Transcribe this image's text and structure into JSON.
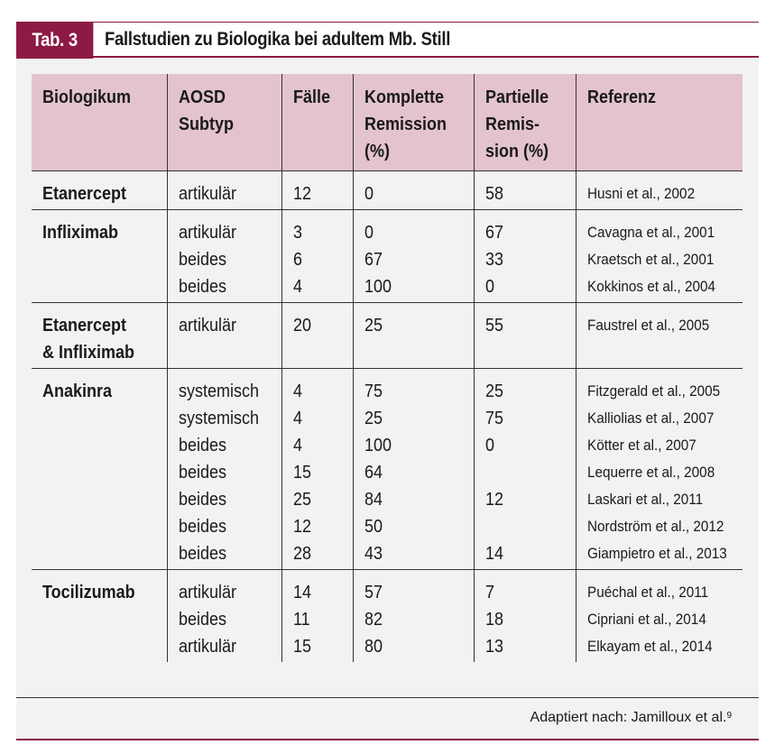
{
  "tag": "Tab. 3",
  "title": "Fallstudien zu Biologika bei adultem Mb. Still",
  "headers": {
    "biologikum": "Biologikum",
    "subtyp_1": "AOSD",
    "subtyp_2": "Subtyp",
    "faelle": "Fälle",
    "komplett_1": "Komplette",
    "komplett_2": "Remission",
    "komplett_3": "(%)",
    "partiell_1": "Partielle",
    "partiell_2": "Remis-",
    "partiell_3": "sion (%)",
    "referenz": "Referenz"
  },
  "groups": [
    {
      "drug": [
        "Etanercept"
      ],
      "rows": [
        {
          "subtyp": "artikulär",
          "faelle": "12",
          "komplett": "0",
          "partiell": "58",
          "referenz": "Husni et al., 2002"
        }
      ]
    },
    {
      "drug": [
        "Infliximab"
      ],
      "rows": [
        {
          "subtyp": "artikulär",
          "faelle": "3",
          "komplett": "0",
          "partiell": "67",
          "referenz": "Cavagna et al., 2001"
        },
        {
          "subtyp": "beides",
          "faelle": "6",
          "komplett": "67",
          "partiell": "33",
          "referenz": "Kraetsch et al., 2001"
        },
        {
          "subtyp": "beides",
          "faelle": "4",
          "komplett": "100",
          "partiell": "0",
          "referenz": "Kokkinos et al., 2004"
        }
      ]
    },
    {
      "drug": [
        "Etanercept",
        "& Infliximab"
      ],
      "rows": [
        {
          "subtyp": "artikulär",
          "faelle": "20",
          "komplett": "25",
          "partiell": "55",
          "referenz": "Faustrel et al., 2005"
        }
      ]
    },
    {
      "drug": [
        "Anakinra"
      ],
      "rows": [
        {
          "subtyp": "systemisch",
          "faelle": "4",
          "komplett": "75",
          "partiell": "25",
          "referenz": "Fitzgerald et al., 2005"
        },
        {
          "subtyp": "systemisch",
          "faelle": "4",
          "komplett": "25",
          "partiell": "75",
          "referenz": "Kalliolias et al., 2007"
        },
        {
          "subtyp": "beides",
          "faelle": "4",
          "komplett": "100",
          "partiell": "0",
          "referenz": "Kötter et al., 2007"
        },
        {
          "subtyp": "beides",
          "faelle": "15",
          "komplett": "64",
          "partiell": "",
          "referenz": "Lequerre et al., 2008"
        },
        {
          "subtyp": "beides",
          "faelle": "25",
          "komplett": "84",
          "partiell": "12",
          "referenz": "Laskari et al., 2011"
        },
        {
          "subtyp": "beides",
          "faelle": "12",
          "komplett": "50",
          "partiell": "",
          "referenz": "Nordström et al., 2012"
        },
        {
          "subtyp": "beides",
          "faelle": "28",
          "komplett": "43",
          "partiell": "14",
          "referenz": "Giampietro et al., 2013"
        }
      ]
    },
    {
      "drug": [
        "Tocilizumab"
      ],
      "rows": [
        {
          "subtyp": "artikulär",
          "faelle": "14",
          "komplett": "57",
          "partiell": "7",
          "referenz": "Puéchal et al., 2011"
        },
        {
          "subtyp": "beides",
          "faelle": "11",
          "komplett": "82",
          "partiell": "18",
          "referenz": "Cipriani et al., 2014"
        },
        {
          "subtyp": "artikulär",
          "faelle": "15",
          "komplett": "80",
          "partiell": "13",
          "referenz": "Elkayam et al., 2014"
        }
      ]
    }
  ],
  "footnote": "Adaptiert nach: Jamilloux et al.",
  "footnote_ref": "9",
  "colors": {
    "accent": "#8d1a44",
    "header_bg": "#e3c3cd",
    "panel_bg": "#f2f2f2"
  }
}
